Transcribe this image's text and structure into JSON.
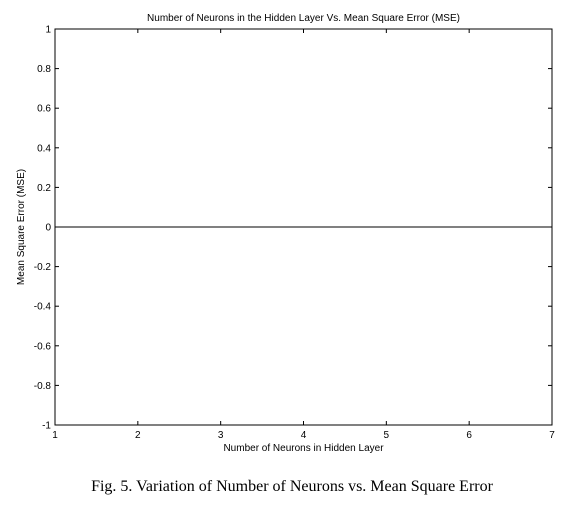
{
  "chart_data": {
    "type": "line",
    "title": "Number of Neurons in the Hidden Layer Vs. Mean Square Error (MSE)",
    "xlabel": "Number of Neurons in Hidden Layer",
    "ylabel": "Mean Square Error (MSE)",
    "xlim": [
      1,
      7
    ],
    "ylim": [
      -1,
      1
    ],
    "xticks": [
      1,
      2,
      3,
      4,
      5,
      6,
      7
    ],
    "yticks": [
      1,
      0.8,
      0.6,
      0.4,
      0.2,
      0,
      -0.2,
      -0.4,
      -0.6,
      -0.8,
      -1
    ],
    "ytick_labels": [
      "1",
      "0.8",
      "0.6",
      "0.4",
      "0.2",
      "0",
      "-0.2",
      "-0.4",
      "-0.6",
      "-0.8",
      "-1"
    ],
    "grid": false,
    "series": [
      {
        "x": [
          1,
          2,
          3,
          4,
          5,
          6,
          7
        ],
        "values": [
          0,
          0,
          0,
          0,
          0,
          0,
          0
        ],
        "color": "#000000"
      }
    ]
  },
  "caption": "Fig. 5. Variation of Number of Neurons vs. Mean Square Error"
}
